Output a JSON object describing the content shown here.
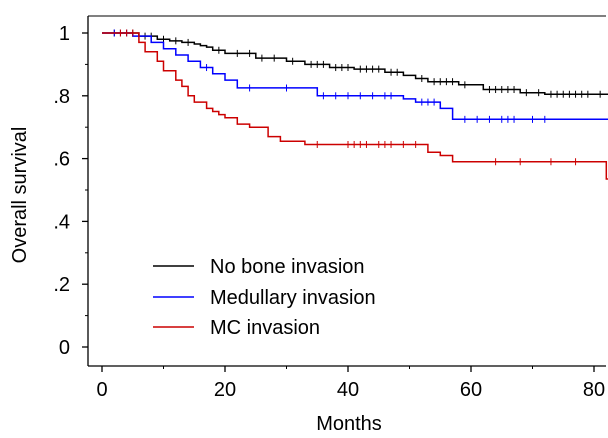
{
  "chart_data": {
    "type": "line",
    "subtype": "kaplan-meier step curve with censor marks",
    "title": "",
    "xlabel": "Months",
    "ylabel": "Overall survival",
    "xlim": [
      0,
      83
    ],
    "ylim": [
      0,
      1.05
    ],
    "xticks": [
      0,
      20,
      40,
      60,
      80
    ],
    "xtick_labels": [
      "0",
      "20",
      "40",
      "60",
      "80"
    ],
    "xminor_ticks": [
      10,
      30,
      50,
      70
    ],
    "yticks": [
      0,
      0.2,
      0.4,
      0.6,
      0.8,
      1
    ],
    "ytick_labels": [
      "0",
      ".2",
      ".4",
      ".6",
      ".8",
      "1"
    ],
    "yminor_ticks": [
      0.1,
      0.3,
      0.5,
      0.7,
      0.9
    ],
    "grid": false,
    "legend_position": "lower-left",
    "series": [
      {
        "name": "No bone invasion",
        "color": "#000000",
        "x": [
          0,
          6,
          9,
          11,
          13,
          15,
          16,
          17,
          18,
          20,
          25,
          30,
          33,
          37,
          41,
          46,
          49,
          51,
          53,
          58,
          62,
          68,
          72,
          83
        ],
        "y": [
          1.0,
          0.99,
          0.98,
          0.975,
          0.97,
          0.965,
          0.96,
          0.955,
          0.945,
          0.935,
          0.92,
          0.91,
          0.9,
          0.89,
          0.885,
          0.875,
          0.865,
          0.855,
          0.845,
          0.835,
          0.82,
          0.81,
          0.805,
          0.805
        ],
        "censored_x": [
          2,
          3,
          4,
          5,
          7,
          8,
          10,
          12,
          14,
          19,
          22,
          24,
          26,
          28,
          31,
          34,
          35,
          36,
          38,
          39,
          40,
          42,
          43,
          44,
          45,
          47,
          48,
          52,
          54,
          55,
          56,
          57,
          59,
          63,
          64,
          65,
          66,
          67,
          69,
          71,
          73,
          74,
          75,
          76,
          77,
          78,
          79,
          81
        ]
      },
      {
        "name": "Medullary invasion",
        "color": "#0000ff",
        "x": [
          0,
          5,
          8,
          10,
          12,
          14,
          16,
          18,
          20,
          22,
          35,
          49,
          51,
          55,
          57,
          83
        ],
        "y": [
          1.0,
          0.99,
          0.97,
          0.95,
          0.93,
          0.91,
          0.89,
          0.87,
          0.85,
          0.825,
          0.8,
          0.79,
          0.78,
          0.76,
          0.725,
          0.725
        ],
        "censored_x": [
          2,
          3,
          4,
          17,
          24,
          30,
          36,
          38,
          40,
          42,
          44,
          46,
          47,
          52,
          53,
          54,
          59,
          61,
          63,
          65,
          66,
          67,
          70,
          72
        ]
      },
      {
        "name": "MC invasion",
        "color": "#cc0000",
        "x": [
          0,
          6,
          7,
          9,
          10,
          12,
          13,
          14,
          15,
          17,
          18,
          19,
          20,
          22,
          24,
          27,
          29,
          33,
          53,
          55,
          57,
          82,
          83
        ],
        "y": [
          1.0,
          0.97,
          0.94,
          0.91,
          0.88,
          0.85,
          0.83,
          0.8,
          0.78,
          0.76,
          0.75,
          0.74,
          0.73,
          0.71,
          0.7,
          0.67,
          0.655,
          0.645,
          0.62,
          0.61,
          0.59,
          0.535,
          0.535
        ],
        "censored_x": [
          3,
          4,
          5,
          35,
          40,
          41,
          42,
          43,
          45,
          46,
          47,
          49,
          51,
          64,
          68,
          73,
          77
        ]
      }
    ]
  }
}
